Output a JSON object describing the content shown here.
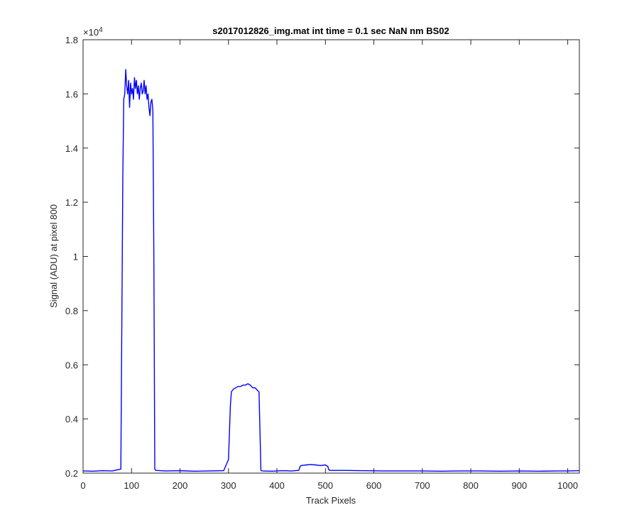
{
  "chart_data": {
    "type": "line",
    "title": "s2017012826_img.mat int time = 0.1 sec  NaN nm BS02",
    "xlabel": "Track Pixels",
    "ylabel": "Signal (ADU) at pixel 800",
    "xlim": [
      0,
      1024
    ],
    "ylim": [
      0.2,
      1.8
    ],
    "y_multiplier_base": "×10",
    "y_multiplier_exp": "4",
    "x_ticks": [
      0,
      100,
      200,
      300,
      400,
      500,
      600,
      700,
      800,
      900,
      1000
    ],
    "x_tick_labels": [
      "0",
      "100",
      "200",
      "300",
      "400",
      "500",
      "600",
      "700",
      "800",
      "900",
      "1000"
    ],
    "y_ticks": [
      0.2,
      0.4,
      0.6,
      0.8,
      1.0,
      1.2,
      1.4,
      1.6,
      1.8
    ],
    "y_tick_labels": [
      "0.2",
      "0.4",
      "0.6",
      "0.8",
      "1",
      "1.2",
      "1.4",
      "1.6",
      "1.8"
    ],
    "grid": false,
    "series_color": "#0000ff",
    "series": [
      {
        "x": [
          0,
          20,
          40,
          60,
          78,
          82,
          84,
          86,
          88,
          90,
          92,
          94,
          96,
          98,
          100,
          102,
          104,
          106,
          108,
          110,
          112,
          114,
          116,
          118,
          120,
          122,
          124,
          126,
          128,
          130,
          132,
          134,
          136,
          138,
          140,
          142,
          144,
          146,
          148,
          150,
          170,
          200,
          230,
          260,
          290,
          300,
          304,
          306,
          310,
          315,
          320,
          325,
          330,
          335,
          340,
          345,
          350,
          355,
          360,
          363,
          365,
          367,
          370,
          390,
          410,
          430,
          445,
          448,
          450,
          460,
          470,
          480,
          490,
          500,
          505,
          507,
          510,
          540,
          580,
          620,
          660,
          700,
          740,
          780,
          820,
          860,
          900,
          940,
          980,
          1000,
          1024
        ],
        "y": [
          0.208,
          0.207,
          0.209,
          0.208,
          0.215,
          1.3,
          1.58,
          1.6,
          1.69,
          1.63,
          1.6,
          1.65,
          1.55,
          1.64,
          1.6,
          1.62,
          1.58,
          1.66,
          1.62,
          1.65,
          1.6,
          1.63,
          1.58,
          1.62,
          1.64,
          1.6,
          1.61,
          1.65,
          1.6,
          1.63,
          1.58,
          1.6,
          1.55,
          1.52,
          1.57,
          1.58,
          1.54,
          1.0,
          0.215,
          0.21,
          0.208,
          0.209,
          0.207,
          0.208,
          0.209,
          0.25,
          0.45,
          0.5,
          0.51,
          0.515,
          0.52,
          0.52,
          0.525,
          0.525,
          0.53,
          0.525,
          0.515,
          0.515,
          0.505,
          0.5,
          0.35,
          0.21,
          0.208,
          0.207,
          0.209,
          0.208,
          0.21,
          0.225,
          0.228,
          0.23,
          0.232,
          0.23,
          0.228,
          0.23,
          0.225,
          0.212,
          0.21,
          0.21,
          0.209,
          0.208,
          0.208,
          0.208,
          0.207,
          0.208,
          0.208,
          0.207,
          0.208,
          0.207,
          0.208,
          0.208,
          0.209
        ]
      }
    ]
  }
}
